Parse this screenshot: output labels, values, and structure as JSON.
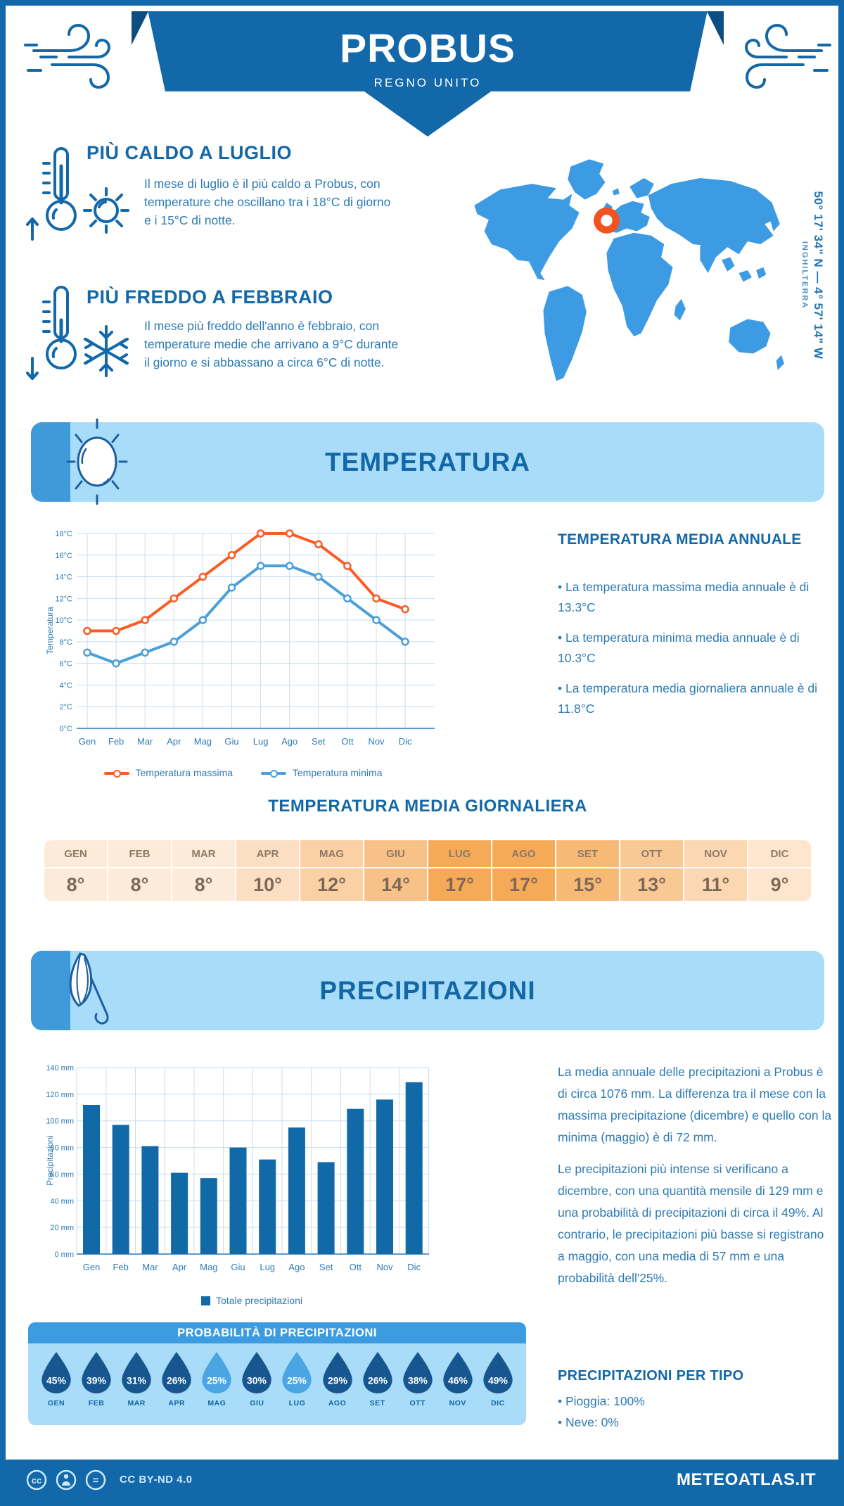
{
  "colors": {
    "brand": "#1268a9",
    "panel": "#a9dcf8",
    "tab": "#3e9ad8",
    "map": "#3d9be4",
    "marker": "#f4511e",
    "bar": "#1269a8",
    "body": "#2e7bb5",
    "heading": "#1368a7"
  },
  "header": {
    "title": "PROBUS",
    "subtitle": "REGNO UNITO"
  },
  "location": {
    "coordinates": "50° 17' 34\" N — 4° 57' 14\" W",
    "region": "INGHILTERRA"
  },
  "highlights": {
    "warm": {
      "title": "PIÙ CALDO A LUGLIO",
      "text": "Il mese di luglio è il più caldo a Probus, con temperature che oscillano tra i 18°C di giorno e i 15°C di notte."
    },
    "cold": {
      "title": "PIÙ FREDDO A FEBBRAIO",
      "text": "Il mese più freddo dell'anno è febbraio, con temperature medie che arrivano a 9°C durante il giorno e si abbassano a circa 6°C di notte."
    }
  },
  "temperature": {
    "section_title": "TEMPERATURA",
    "annual_heading": "TEMPERATURA MEDIA ANNUALE",
    "annual_bullets": [
      "• La temperatura massima media annuale è di 13.3°C",
      "• La temperatura minima media annuale è di 10.3°C",
      "• La temperatura media giornaliera annuale è di 11.8°C"
    ],
    "daily_heading": "TEMPERATURA MEDIA GIORNALIERA"
  },
  "daily_table": {
    "months": [
      "GEN",
      "FEB",
      "MAR",
      "APR",
      "MAG",
      "GIU",
      "LUG",
      "AGO",
      "SET",
      "OTT",
      "NOV",
      "DIC"
    ],
    "values": [
      "8°",
      "8°",
      "8°",
      "10°",
      "12°",
      "14°",
      "17°",
      "17°",
      "15°",
      "13°",
      "11°",
      "9°"
    ],
    "cell_colors": [
      "#fdebd9",
      "#fdebd9",
      "#fdebd9",
      "#fcdfc2",
      "#fad0a4",
      "#f8c187",
      "#f5aa58",
      "#f5aa58",
      "#f7b976",
      "#f9c995",
      "#fbd7b2",
      "#fde6cd"
    ]
  },
  "precipitation": {
    "section_title": "PRECIPITAZIONI",
    "paragraphs": [
      "La media annuale delle precipitazioni a Probus è di circa 1076 mm. La differenza tra il mese con la massima precipitazione (dicembre) e quello con la minima (maggio) è di 72 mm.",
      "Le precipitazioni più intense si verificano a dicembre, con una quantità mensile di 129 mm e una probabilità di precipitazioni di circa il 49%. Al contrario, le precipitazioni più basse si registrano a maggio, con una media di 57 mm e una probabilità dell'25%."
    ],
    "probability": {
      "heading": "PROBABILITÀ DI PRECIPITAZIONI",
      "months": [
        "GEN",
        "FEB",
        "MAR",
        "APR",
        "MAG",
        "GIU",
        "LUG",
        "AGO",
        "SET",
        "OTT",
        "NOV",
        "DIC"
      ],
      "values": [
        "45%",
        "39%",
        "31%",
        "26%",
        "25%",
        "30%",
        "25%",
        "29%",
        "26%",
        "38%",
        "46%",
        "49%"
      ],
      "drop_colors": [
        "#17568e",
        "#17568e",
        "#17568e",
        "#17568e",
        "#4aa5e2",
        "#17568e",
        "#4aa5e2",
        "#17568e",
        "#17568e",
        "#17568e",
        "#17568e",
        "#17568e"
      ]
    },
    "by_type": {
      "heading": "PRECIPITAZIONI PER TIPO",
      "items": [
        "• Pioggia: 100%",
        "• Neve: 0%"
      ]
    }
  },
  "chart_data": [
    {
      "type": "line",
      "categories": [
        "Gen",
        "Feb",
        "Mar",
        "Apr",
        "Mag",
        "Giu",
        "Lug",
        "Ago",
        "Set",
        "Ott",
        "Nov",
        "Dic"
      ],
      "series": [
        {
          "name": "Temperatura massima",
          "color": "#f95d25",
          "values": [
            9,
            9,
            10,
            12,
            14,
            16,
            18,
            18,
            17,
            15,
            12,
            11
          ]
        },
        {
          "name": "Temperatura minima",
          "color": "#4ba0d9",
          "values": [
            7,
            6,
            7,
            8,
            10,
            13,
            15,
            15,
            14,
            12,
            10,
            8
          ]
        }
      ],
      "ylabel": "Temperatura",
      "ylim": [
        0,
        18
      ],
      "ytick_step": 2,
      "ytick_suffix": "°C",
      "grid": true,
      "legend_position": "bottom"
    },
    {
      "type": "bar",
      "categories": [
        "Gen",
        "Feb",
        "Mar",
        "Apr",
        "Mag",
        "Giu",
        "Lug",
        "Ago",
        "Set",
        "Ott",
        "Nov",
        "Dic"
      ],
      "values": [
        112,
        97,
        81,
        61,
        57,
        80,
        71,
        95,
        69,
        109,
        116,
        129
      ],
      "legend": "Totale precipitazioni",
      "ylabel": "Precipitazioni",
      "ylim": [
        0,
        140
      ],
      "ytick_step": 20,
      "ytick_suffix": " mm",
      "grid": true,
      "bar_color": "#1269a8"
    }
  ],
  "footer": {
    "license": "CC BY-ND 4.0",
    "site": "METEOATLAS.IT"
  }
}
